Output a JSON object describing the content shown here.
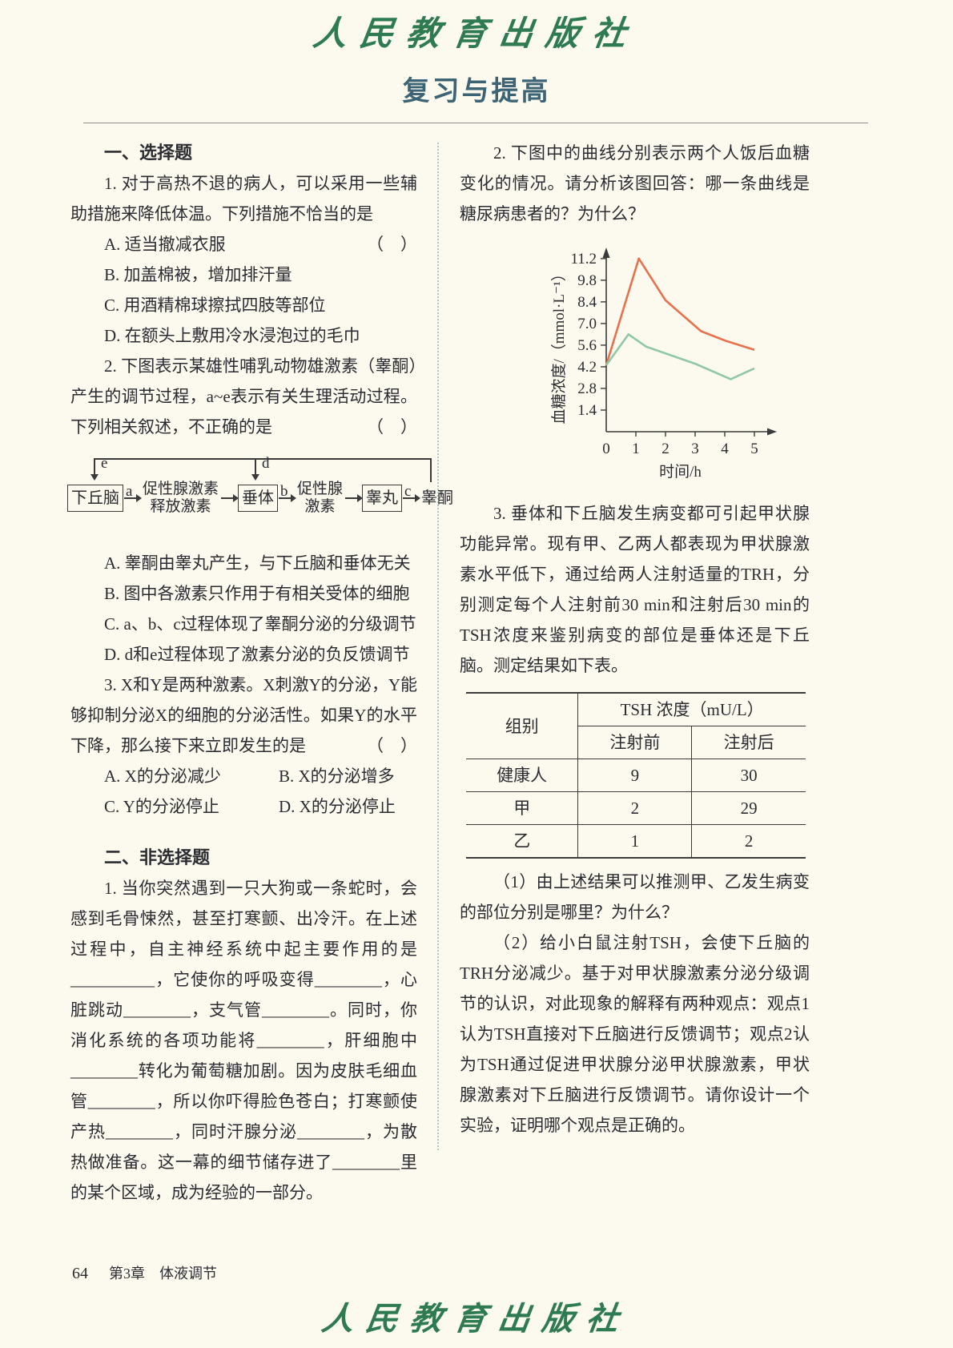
{
  "header": {
    "logo_text": "人民教育出版社",
    "title": "复习与提高"
  },
  "left": {
    "section1_heading": "一、选择题",
    "q1": {
      "stem": "1. 对于高热不退的病人，可以采用一些辅助措施来降低体温。下列措施不恰当的是",
      "paren": "（　）",
      "options": [
        "A. 适当撤减衣服",
        "B. 加盖棉被，增加排汗量",
        "C. 用酒精棉球擦拭四肢等部位",
        "D. 在额头上敷用冷水浸泡过的毛巾"
      ]
    },
    "q2": {
      "stem": "2. 下图表示某雄性哺乳动物雄激素（睾酮）产生的调节过程，a~e表示有关生理活动过程。下列相关叙述，不正确的是",
      "paren": "（　）",
      "diagram": {
        "box1": "下丘脑",
        "box2": "垂体",
        "box3": "睾丸",
        "end": "睾酮",
        "mid1_line1": "促性腺激素",
        "mid1_line2": "释放激素",
        "mid2_line1": "促性腺",
        "mid2_line2": "激素",
        "labels": {
          "a": "a",
          "b": "b",
          "c": "c",
          "d": "d",
          "e": "e"
        }
      },
      "options": [
        "A. 睾酮由睾丸产生，与下丘脑和垂体无关",
        "B. 图中各激素只作用于有相关受体的细胞",
        "C. a、b、c过程体现了睾酮分泌的分级调节",
        "D. d和e过程体现了激素分泌的负反馈调节"
      ]
    },
    "q3": {
      "stem": "3. X和Y是两种激素。X刺激Y的分泌，Y能够抑制分泌X的细胞的分泌活性。如果Y的水平下降，那么接下来立即发生的是",
      "paren": "（　）",
      "options": [
        "A. X的分泌减少",
        "B. X的分泌增多",
        "C. Y的分泌停止",
        "D. X的分泌停止"
      ]
    },
    "section2_heading": "二、非选择题",
    "nq1": "1. 当你突然遇到一只大狗或一条蛇时，会感到毛骨悚然，甚至打寒颤、出冷汗。在上述过程中，自主神经系统中起主要作用的是__________，它使你的呼吸变得________，心脏跳动________，支气管________。同时，你消化系统的各项功能将________，肝细胞中________转化为葡萄糖加剧。因为皮肤毛细血管________，所以你吓得脸色苍白；打寒颤使产热________，同时汗腺分泌________，为散热做准备。这一幕的细节储存进了________里的某个区域，成为经验的一部分。"
  },
  "right": {
    "q2_stem": "2. 下图中的曲线分别表示两个人饭后血糖变化的情况。请分析该图回答：哪一条曲线是糖尿病患者的？为什么？",
    "q3_stem": "3. 垂体和下丘脑发生病变都可引起甲状腺功能异常。现有甲、乙两人都表现为甲状腺激素水平低下，通过给两人注射适量的TRH，分别测定每个人注射前30 min和注射后30 min的TSH浓度来鉴别病变的部位是垂体还是下丘脑。测定结果如下表。",
    "table": {
      "col1_header": "组别",
      "span_header": "TSH 浓度（mU/L）",
      "sub_headers": [
        "注射前",
        "注射后"
      ],
      "rows": [
        [
          "健康人",
          "9",
          "30"
        ],
        [
          "甲",
          "2",
          "29"
        ],
        [
          "乙",
          "1",
          "2"
        ]
      ]
    },
    "sub1": "（1）由上述结果可以推测甲、乙发生病变的部位分别是哪里？为什么？",
    "sub2": "（2）给小白鼠注射TSH，会使下丘脑的TRH分泌减少。基于对甲状腺激素分泌分级调节的认识，对此现象的解释有两种观点：观点1认为TSH直接对下丘脑进行反馈调节；观点2认为TSH通过促进甲状腺分泌甲状腺激素，甲状腺激素对下丘脑进行反馈调节。请你设计一个实验，证明哪个观点是正确的。"
  },
  "chart_data": {
    "type": "line",
    "title": "",
    "xlabel": "时间/h",
    "ylabel": "血糖浓度/（mmol·L⁻¹）",
    "xticks": [
      0,
      1,
      2,
      3,
      4,
      5
    ],
    "yticks": [
      1.4,
      2.8,
      4.2,
      5.6,
      7.0,
      8.4,
      9.8,
      11.2
    ],
    "xlim": [
      0,
      5.5
    ],
    "ylim": [
      0,
      12.2
    ],
    "grid": false,
    "legend": "none",
    "series": [
      {
        "name": "red-curve",
        "color": "#e8714d",
        "points": [
          [
            0,
            4.3
          ],
          [
            1.1,
            11.2
          ],
          [
            2,
            8.5
          ],
          [
            3.2,
            6.5
          ],
          [
            4,
            5.9
          ],
          [
            5,
            5.3
          ]
        ]
      },
      {
        "name": "green-curve",
        "color": "#8fc8a5",
        "points": [
          [
            0,
            4.3
          ],
          [
            0.75,
            6.3
          ],
          [
            1.35,
            5.5
          ],
          [
            3,
            4.4
          ],
          [
            4.2,
            3.4
          ],
          [
            5,
            4.1
          ]
        ]
      }
    ]
  },
  "footer": {
    "page_number": "64",
    "chapter": "第3章　体液调节"
  }
}
